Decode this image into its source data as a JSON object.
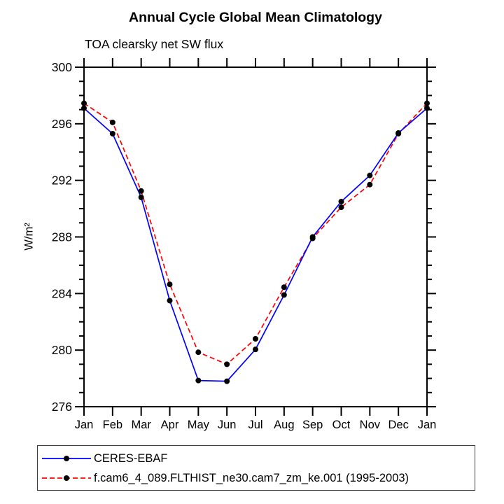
{
  "header": {
    "title": "Annual Cycle Global Mean Climatology",
    "subtitle": "TOA clearsky net SW flux"
  },
  "chart_data": {
    "type": "line",
    "title": "Annual Cycle Global Mean Climatology",
    "subtitle": "TOA clearsky net SW flux",
    "ylabel": "W/m²",
    "xlabel": "",
    "categories": [
      "Jan",
      "Feb",
      "Mar",
      "Apr",
      "May",
      "Jun",
      "Jul",
      "Aug",
      "Sep",
      "Oct",
      "Nov",
      "Dec",
      "Jan"
    ],
    "series": [
      {
        "name": "CERES-EBAF",
        "color": "#0000ff",
        "style": "solid",
        "marker": "black-dot",
        "values": [
          297.1,
          295.3,
          290.8,
          283.5,
          277.85,
          277.8,
          280.05,
          283.9,
          288.0,
          290.5,
          292.35,
          295.35,
          297.1
        ]
      },
      {
        "name": "f.cam6_4_089.FLTHIST_ne30.cam7_zm_ke.001 (1995-2003)",
        "color": "#ff0000",
        "style": "dashed",
        "marker": "black-dot",
        "values": [
          297.45,
          296.1,
          291.25,
          284.65,
          279.85,
          279.0,
          280.8,
          284.45,
          287.9,
          290.1,
          291.7,
          295.3,
          297.45
        ]
      }
    ],
    "ylim": [
      276,
      300
    ],
    "y_major_ticks": [
      276,
      280,
      284,
      288,
      292,
      296,
      300
    ],
    "y_minor_step": 1,
    "grid": false,
    "legend_position": "bottom",
    "marker_color": "#000000",
    "axis_color": "#000000"
  }
}
